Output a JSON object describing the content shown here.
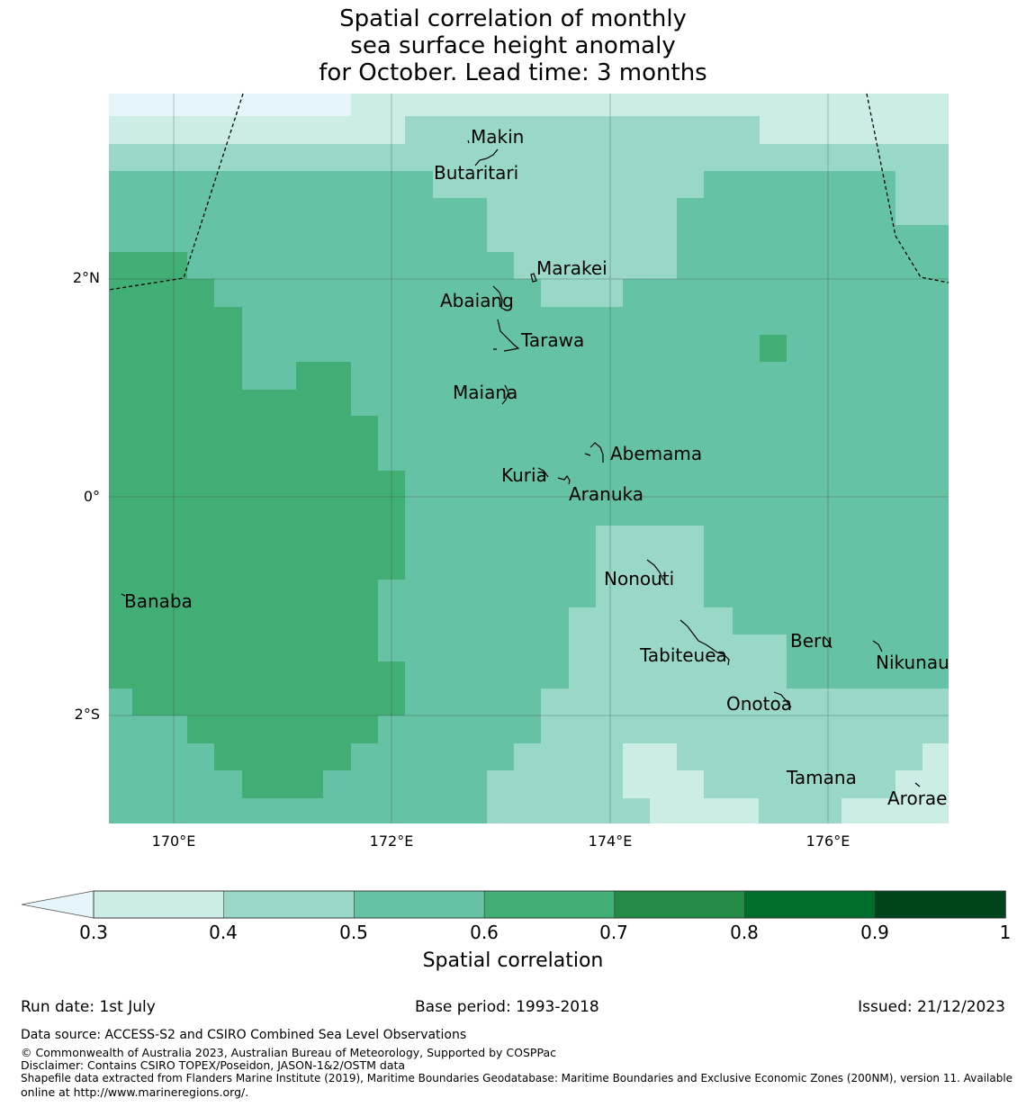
{
  "title": {
    "line1": "Spatial correlation of monthly",
    "line2": "sea surface height anomaly",
    "line3": "for October. Lead time: 3 months"
  },
  "map": {
    "lat_ticks": [
      "2°N",
      "0°",
      "2°S"
    ],
    "lon_ticks": [
      "170°E",
      "172°E",
      "174°E",
      "176°E"
    ],
    "places": {
      "makin": "Makin",
      "butaritari": "Butaritari",
      "marakei": "Marakei",
      "abaiang": "Abaiang",
      "tarawa": "Tarawa",
      "maiana": "Maiana",
      "abemama": "Abemama",
      "kuria": "Kuria",
      "aranuka": "Aranuka",
      "banaba": "Banaba",
      "nonouti": "Nonouti",
      "beru": "Beru",
      "tabiteuea": "Tabiteuea",
      "nikunau": "Nikunau",
      "onotoa": "Onotoa",
      "tamana": "Tamana",
      "arorae": "Arorae"
    }
  },
  "colorbar": {
    "labels": [
      "0.3",
      "0.4",
      "0.5",
      "0.6",
      "0.7",
      "0.8",
      "0.9",
      "1"
    ],
    "colors": [
      "#e6f5f9",
      "#ccece6",
      "#99d8c9",
      "#66c2a4",
      "#41ae76",
      "#238b45",
      "#006d2c",
      "#00441b"
    ],
    "title": "Spatial correlation"
  },
  "footer": {
    "run_date": "Run date: 1st July",
    "base_period": "Base period: 1993-2018",
    "issued": "Issued: 21/12/2023",
    "data_source": "Data source: ACCESS-S2 and CSIRO Combined Sea Level Observations",
    "copyright": "© Commonwealth of Australia 2023, Australian Bureau of Meteorology, Supported by COSPPac",
    "disclaimer": "Disclaimer: Contains CSIRO TOPEX/Poseidon, JASON-1&2/OSTM data",
    "shapefile1": "Shapefile data extracted from Flanders Marine Institute (2019), Maritime Boundaries Geodatabase: Maritime Boundaries and Exclusive Economic Zones (200NM), version 11. Available",
    "shapefile2": "online at http://www.marineregions.org/."
  }
}
